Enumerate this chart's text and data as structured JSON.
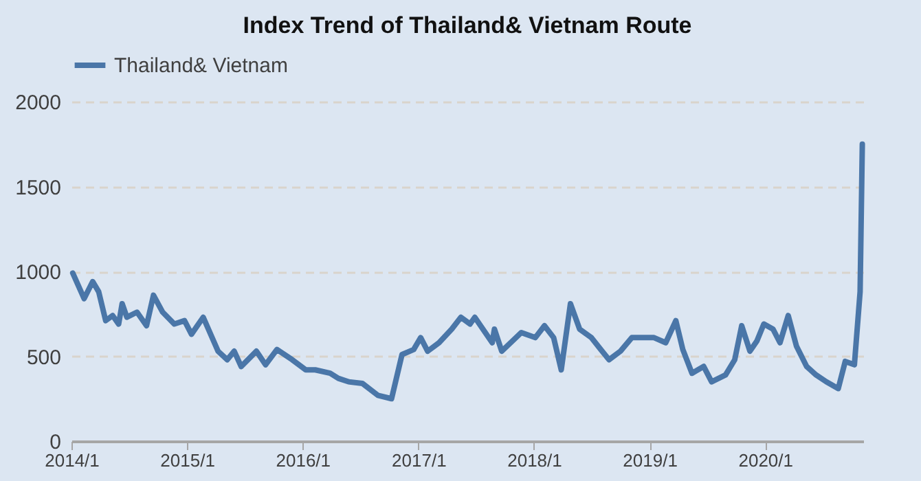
{
  "chart_data": {
    "type": "line",
    "title": "Index Trend of Thailand& Vietnam Route",
    "x": [
      "2014-01-05",
      "2014-02-10",
      "2014-03-09",
      "2014-03-28",
      "2014-04-19",
      "2014-05-11",
      "2014-05-30",
      "2014-06-10",
      "2014-06-25",
      "2014-07-27",
      "2014-08-26",
      "2014-09-17",
      "2014-10-16",
      "2014-11-22",
      "2014-12-24",
      "2015-01-15",
      "2015-02-21",
      "2015-04-09",
      "2015-05-08",
      "2015-05-30",
      "2015-06-21",
      "2015-08-08",
      "2015-09-06",
      "2015-10-12",
      "2015-11-29",
      "2016-01-11",
      "2016-02-10",
      "2016-03-28",
      "2016-04-23",
      "2016-05-25",
      "2016-07-08",
      "2016-08-26",
      "2016-10-08",
      "2016-11-10",
      "2016-12-17",
      "2017-01-08",
      "2017-01-30",
      "2017-03-07",
      "2017-04-16",
      "2017-05-15",
      "2017-06-13",
      "2017-06-28",
      "2017-08-22",
      "2017-08-29",
      "2017-09-21",
      "2017-11-22",
      "2018-01-05",
      "2018-02-03",
      "2018-03-04",
      "2018-03-28",
      "2018-04-26",
      "2018-05-25",
      "2018-07-01",
      "2018-08-04",
      "2018-08-26",
      "2018-10-01",
      "2018-11-06",
      "2019-01-15",
      "2019-02-21",
      "2019-03-25",
      "2019-04-16",
      "2019-05-15",
      "2019-06-21",
      "2019-07-16",
      "2019-08-29",
      "2019-09-27",
      "2019-10-19",
      "2019-11-14",
      "2019-12-06",
      "2019-12-28",
      "2020-01-26",
      "2020-02-17",
      "2020-03-14",
      "2020-04-09",
      "2020-05-11",
      "2020-06-10",
      "2020-07-12",
      "2020-08-19",
      "2020-09-10",
      "2020-10-09",
      "2020-10-27",
      "2020-11-03"
    ],
    "series": [
      {
        "name": "Thailand& Vietnam",
        "color": "#4a76a8",
        "values": [
          990,
          840,
          940,
          880,
          710,
          740,
          690,
          810,
          730,
          760,
          680,
          860,
          760,
          690,
          710,
          630,
          730,
          530,
          480,
          530,
          440,
          530,
          450,
          540,
          480,
          420,
          420,
          400,
          370,
          350,
          340,
          270,
          250,
          510,
          540,
          610,
          530,
          580,
          660,
          730,
          690,
          730,
          580,
          660,
          530,
          640,
          610,
          680,
          610,
          420,
          810,
          660,
          610,
          530,
          480,
          530,
          610,
          610,
          580,
          710,
          540,
          400,
          440,
          350,
          390,
          480,
          680,
          530,
          590,
          690,
          660,
          580,
          740,
          560,
          440,
          390,
          350,
          310,
          470,
          450,
          880,
          1750
        ]
      }
    ],
    "xlim": [
      "2014-01-01",
      "2020-11-06"
    ],
    "xticks": [
      {
        "value": "2014-01",
        "label": "2014/1"
      },
      {
        "value": "2015-01",
        "label": "2015/1"
      },
      {
        "value": "2016-01",
        "label": "2016/1"
      },
      {
        "value": "2017-01",
        "label": "2017/1"
      },
      {
        "value": "2018-01",
        "label": "2018/1"
      },
      {
        "value": "2019-01",
        "label": "2019/1"
      },
      {
        "value": "2020-01",
        "label": "2020/1"
      }
    ],
    "ylim": [
      0,
      2000
    ],
    "yticks": [
      0,
      500,
      1000,
      1500,
      2000
    ],
    "grid": "y",
    "legend": "top",
    "line_style": "solid"
  }
}
